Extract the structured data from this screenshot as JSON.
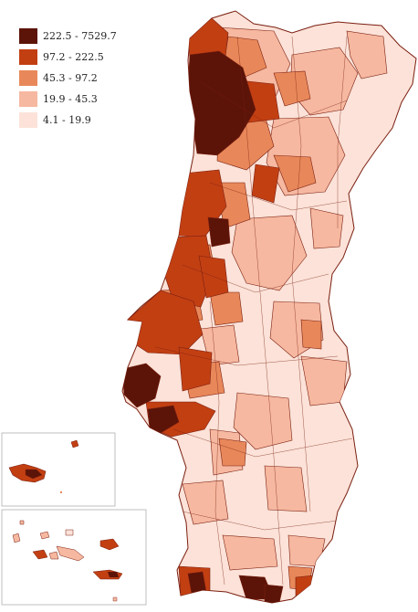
{
  "legend": {
    "classes": [
      {
        "label": "222.5 - 7529.7",
        "color": "#5c1408"
      },
      {
        "label": "97.2 - 222.5",
        "color": "#c23f12"
      },
      {
        "label": "45.3 - 97.2",
        "color": "#e8885a"
      },
      {
        "label": "19.9 - 45.3",
        "color": "#f6b8a0"
      },
      {
        "label": "4.1 - 19.9",
        "color": "#fce2d8"
      }
    ]
  },
  "map": {
    "border_color": "#7a1f10",
    "inset_frame_color": "#b0b0b0"
  }
}
